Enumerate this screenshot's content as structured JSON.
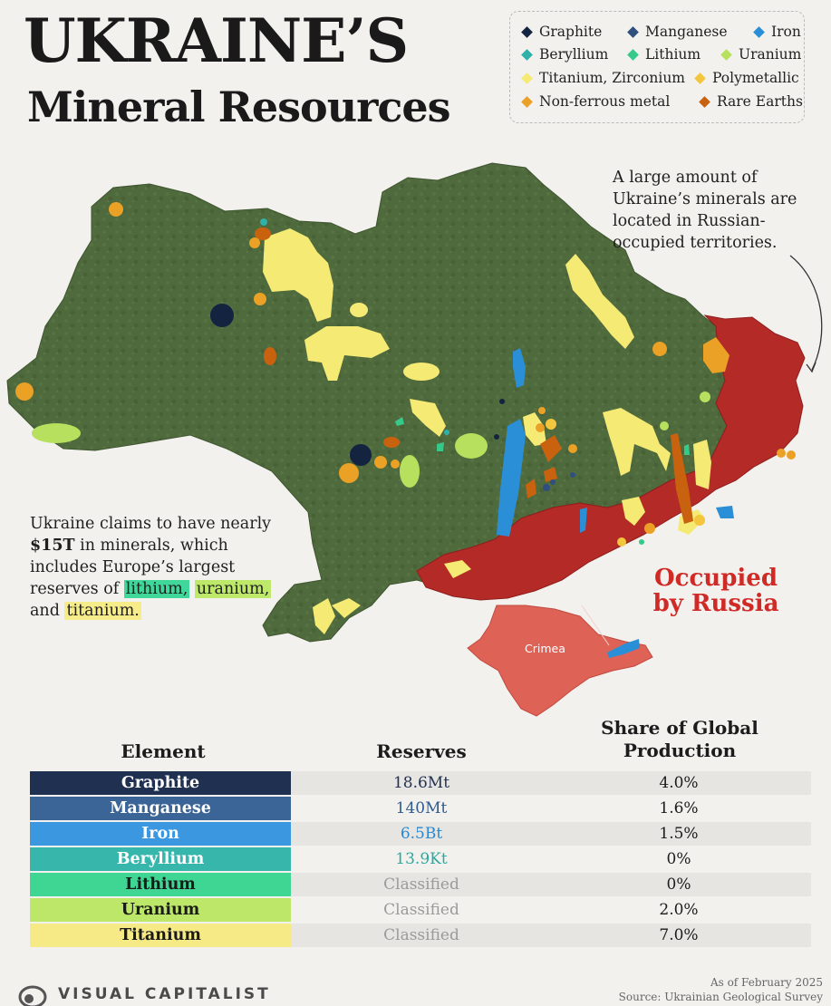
{
  "title_line1": "UKRAINE’S",
  "title_line2": "Mineral Resources",
  "legend": [
    {
      "label": "Graphite",
      "color": "#14233f"
    },
    {
      "label": "Manganese",
      "color": "#2f4f7f"
    },
    {
      "label": "Iron",
      "color": "#2a8fd6"
    },
    {
      "label": "Beryllium",
      "color": "#2fb0a8"
    },
    {
      "label": "Lithium",
      "color": "#35c98a"
    },
    {
      "label": "Uranium",
      "color": "#b7e05e"
    },
    {
      "label": "Titanium, Zirconium",
      "color": "#f4ea74"
    },
    {
      "label": "Polymetallic",
      "color": "#f3c63d"
    },
    {
      "label": "Non-ferrous metal",
      "color": "#eaa126"
    },
    {
      "label": "Rare Earths",
      "color": "#c8620f"
    }
  ],
  "note_top": "A large amount of Ukraine’s minerals are located in Russian-occupied territories.",
  "note_left": {
    "text1": "Ukraine claims to have nearly ",
    "bold": "$15T",
    "text2": " in minerals, which includes Europe’s largest reserves of ",
    "hl1": "lithium,",
    "hl2": "uranium,",
    "text3": " and ",
    "hl3": "titanium.",
    "hl1_color": "#3fd79a",
    "hl2_color": "#bde86a",
    "hl3_color": "#f6ec8a"
  },
  "occupied_label_1": "Occupied",
  "occupied_label_2": "by Russia",
  "occupied_color": "#b42a27",
  "crimea_label": "Crimea",
  "table": {
    "headers": {
      "element": "Element",
      "reserves": "Reserves",
      "share_1": "Share of Global",
      "share_2": "Production"
    },
    "rows": [
      {
        "element": "Graphite",
        "reserves": "18.6Mt",
        "share": "4.0%",
        "bg": "#1f3050",
        "fg": "#ffffff",
        "rcolor": "#1f3050"
      },
      {
        "element": "Manganese",
        "reserves": "140Mt",
        "share": "1.6%",
        "bg": "#3a6596",
        "fg": "#ffffff",
        "rcolor": "#2f5a8e"
      },
      {
        "element": "Iron",
        "reserves": "6.5Bt",
        "share": "1.5%",
        "bg": "#3a97e0",
        "fg": "#ffffff",
        "rcolor": "#2b88cf"
      },
      {
        "element": "Beryllium",
        "reserves": "13.9Kt",
        "share": "0%",
        "bg": "#37b6ac",
        "fg": "#ffffff",
        "rcolor": "#2aa9a0"
      },
      {
        "element": "Lithium",
        "reserves": "Classified",
        "share": "0%",
        "bg": "#3fd592",
        "fg": "#1a1a1a",
        "rcolor": "#9a9a9a"
      },
      {
        "element": "Uranium",
        "reserves": "Classified",
        "share": "2.0%",
        "bg": "#bde768",
        "fg": "#1a1a1a",
        "rcolor": "#9a9a9a"
      },
      {
        "element": "Titanium",
        "reserves": "Classified",
        "share": "7.0%",
        "bg": "#f6ea86",
        "fg": "#1a1a1a",
        "rcolor": "#9a9a9a"
      }
    ]
  },
  "brand": "VISUAL CAPITALIST",
  "footnote_1": "As of February 2025",
  "footnote_2": "Source: Ukrainian Geological Survey"
}
